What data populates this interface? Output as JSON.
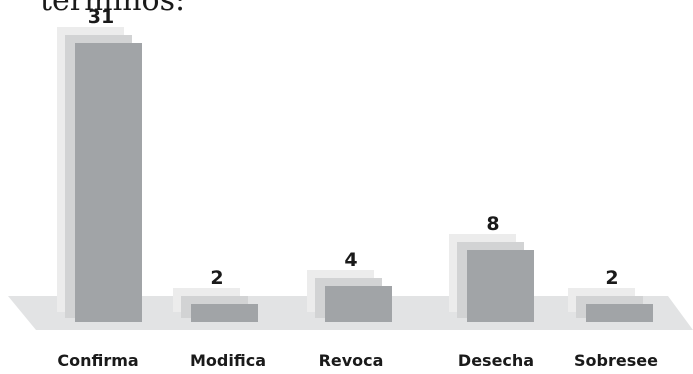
{
  "page": {
    "top_text": "términos:"
  },
  "chart_data": {
    "type": "bar",
    "categories": [
      "Confirma",
      "Modifica",
      "Revoca",
      "Desecha",
      "Sobresee"
    ],
    "values": [
      31,
      2,
      4,
      8,
      2
    ],
    "title": "",
    "xlabel": "",
    "ylabel": "",
    "ylim": [
      0,
      31
    ],
    "grid": false,
    "legend": "none",
    "colors": {
      "bar_front": "#a1a4a7",
      "bar_mid": "#d2d3d4",
      "bar_back": "#ececec",
      "floor": "#e2e3e4",
      "text": "#1a1a1a"
    }
  }
}
